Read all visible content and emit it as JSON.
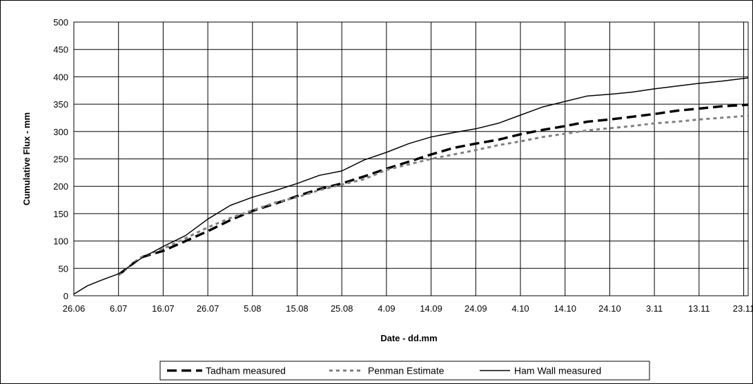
{
  "chart_data": {
    "type": "line",
    "xlabel": "Date - dd.mm",
    "ylabel": "Cumulative Flux - mm",
    "ylim": [
      0,
      500
    ],
    "yticks": [
      0,
      50,
      100,
      150,
      200,
      250,
      300,
      350,
      400,
      450,
      500
    ],
    "x_domain_days": [
      0,
      151
    ],
    "xticks": [
      {
        "day": 0,
        "label": "26.06"
      },
      {
        "day": 10,
        "label": "6.07"
      },
      {
        "day": 20,
        "label": "16.07"
      },
      {
        "day": 30,
        "label": "26.07"
      },
      {
        "day": 40,
        "label": "5.08"
      },
      {
        "day": 50,
        "label": "15.08"
      },
      {
        "day": 60,
        "label": "25.08"
      },
      {
        "day": 70,
        "label": "4.09"
      },
      {
        "day": 80,
        "label": "14.09"
      },
      {
        "day": 90,
        "label": "24.09"
      },
      {
        "day": 100,
        "label": "4.10"
      },
      {
        "day": 110,
        "label": "14.10"
      },
      {
        "day": 120,
        "label": "24.10"
      },
      {
        "day": 130,
        "label": "3.11"
      },
      {
        "day": 140,
        "label": "13.11"
      },
      {
        "day": 150,
        "label": "23.11"
      }
    ],
    "grid": true,
    "legend_position": "bottom",
    "series": [
      {
        "name": "Tadham measured",
        "color": "#000000",
        "style": "long-dash",
        "x": [
          10,
          15,
          20,
          25,
          30,
          35,
          40,
          45,
          50,
          55,
          60,
          65,
          70,
          75,
          80,
          85,
          90,
          95,
          100,
          105,
          110,
          115,
          120,
          125,
          130,
          135,
          140,
          145,
          151
        ],
        "y": [
          38,
          70,
          82,
          100,
          118,
          138,
          155,
          168,
          182,
          195,
          205,
          218,
          232,
          245,
          258,
          270,
          278,
          285,
          295,
          303,
          310,
          318,
          322,
          327,
          332,
          338,
          342,
          346,
          349
        ]
      },
      {
        "name": "Penman Estimate",
        "color": "#808080",
        "style": "dotted",
        "x": [
          10,
          15,
          20,
          25,
          30,
          35,
          40,
          45,
          50,
          55,
          60,
          65,
          70,
          75,
          80,
          85,
          90,
          95,
          100,
          105,
          110,
          115,
          120,
          125,
          130,
          135,
          140,
          145,
          151
        ],
        "y": [
          38,
          70,
          86,
          105,
          125,
          142,
          156,
          170,
          180,
          193,
          203,
          213,
          230,
          240,
          250,
          258,
          266,
          275,
          282,
          290,
          296,
          302,
          306,
          310,
          315,
          318,
          322,
          325,
          329
        ]
      },
      {
        "name": "Ham Wall measured",
        "color": "#000000",
        "style": "solid",
        "x": [
          0,
          3,
          6,
          10,
          15,
          20,
          25,
          30,
          35,
          40,
          45,
          50,
          55,
          60,
          65,
          70,
          75,
          80,
          85,
          90,
          95,
          100,
          105,
          110,
          115,
          120,
          125,
          130,
          135,
          140,
          145,
          151
        ],
        "y": [
          3,
          18,
          28,
          40,
          68,
          90,
          110,
          140,
          165,
          180,
          192,
          205,
          220,
          228,
          248,
          262,
          278,
          290,
          298,
          305,
          315,
          330,
          345,
          355,
          365,
          368,
          372,
          378,
          383,
          388,
          392,
          398
        ]
      }
    ]
  }
}
